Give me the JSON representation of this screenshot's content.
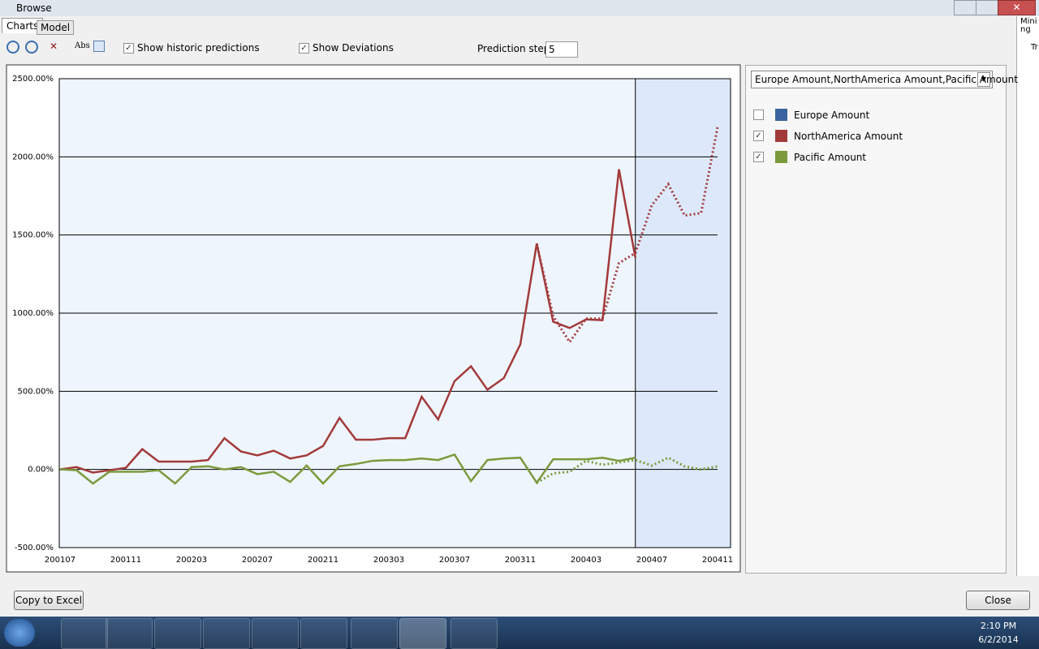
{
  "window": {
    "title": "Browse"
  },
  "tabs": [
    "Charts",
    "Model"
  ],
  "toolbar": {
    "abs_label": "Abs",
    "options": [
      {
        "label": "Show historic predictions",
        "checked": true
      },
      {
        "label": "Show Deviations",
        "checked": true
      }
    ],
    "prediction_steps_label": "Prediction steps",
    "prediction_steps": 5
  },
  "chart_data": {
    "type": "line",
    "categories": [
      "200107",
      null,
      null,
      null,
      "200111",
      null,
      null,
      null,
      "200203",
      null,
      null,
      null,
      "200207",
      null,
      null,
      null,
      "200211",
      null,
      null,
      null,
      "200303",
      null,
      null,
      null,
      "200307",
      null,
      null,
      null,
      "200311",
      null,
      null,
      null,
      "200403",
      null,
      null,
      null,
      "200407",
      null,
      null,
      null,
      "200411"
    ],
    "ylim": [
      -500,
      2500
    ],
    "yticks": [
      {
        "value": -500,
        "label": "-500.00%"
      },
      {
        "value": 0,
        "label": "0.00%"
      },
      {
        "value": 500,
        "label": "500.00%"
      },
      {
        "value": 1000,
        "label": "1000.00%"
      },
      {
        "value": 1500,
        "label": "1500.00%"
      },
      {
        "value": 2000,
        "label": "2000.00%"
      },
      {
        "value": 2500,
        "label": "2500.00%"
      }
    ],
    "grid": true,
    "series": [
      {
        "name": "Europe Amount",
        "color": "#3a64a0",
        "checked": false,
        "values": [
          null,
          null,
          null,
          null,
          null,
          null,
          null,
          null,
          null,
          null,
          null,
          null,
          null,
          null,
          null,
          null,
          null,
          null,
          null,
          null,
          null,
          null,
          null,
          null,
          null,
          null,
          null,
          null,
          null,
          null,
          null,
          null,
          null,
          null,
          null,
          null,
          null,
          null,
          null,
          null,
          null
        ],
        "predicted": [
          null,
          null,
          null,
          null,
          null,
          null,
          null,
          null,
          null,
          null,
          null,
          null,
          null,
          null,
          null,
          null,
          null,
          null,
          null,
          null,
          null,
          null,
          null,
          null,
          null,
          null,
          null,
          null,
          null,
          null,
          null,
          null,
          null,
          null,
          null,
          null,
          null,
          null,
          null,
          null,
          null
        ]
      },
      {
        "name": "NorthAmerica Amount",
        "color": "#a33a3a",
        "checked": true,
        "values": [
          0,
          15,
          -20,
          -5,
          10,
          130,
          50,
          50,
          50,
          60,
          200,
          115,
          90,
          120,
          70,
          90,
          150,
          330,
          190,
          190,
          200,
          200,
          465,
          320,
          565,
          660,
          510,
          585,
          800,
          1445,
          945,
          905,
          960,
          955,
          1920,
          1355,
          null,
          null,
          null,
          null,
          null
        ],
        "predicted": [
          null,
          null,
          null,
          null,
          null,
          null,
          null,
          null,
          null,
          null,
          null,
          null,
          null,
          null,
          null,
          null,
          null,
          null,
          null,
          null,
          null,
          null,
          null,
          null,
          null,
          null,
          null,
          null,
          null,
          1445,
          980,
          815,
          965,
          965,
          1320,
          1385,
          1690,
          1825,
          1625,
          1640,
          2190
        ]
      },
      {
        "name": "Pacific Amount",
        "color": "#7b9a3c",
        "checked": true,
        "values": [
          0,
          -5,
          -90,
          -15,
          -15,
          -15,
          -5,
          -90,
          15,
          20,
          0,
          15,
          -30,
          -15,
          -80,
          25,
          -90,
          20,
          35,
          55,
          60,
          60,
          70,
          60,
          95,
          -75,
          60,
          70,
          75,
          -85,
          65,
          65,
          65,
          75,
          55,
          75,
          null,
          null,
          null,
          null,
          null
        ],
        "predicted": [
          null,
          null,
          null,
          null,
          null,
          null,
          null,
          null,
          null,
          null,
          null,
          null,
          null,
          null,
          null,
          null,
          null,
          null,
          null,
          null,
          null,
          null,
          null,
          null,
          null,
          null,
          null,
          null,
          null,
          -85,
          -25,
          -15,
          55,
          30,
          45,
          60,
          25,
          75,
          20,
          0,
          20
        ]
      }
    ]
  },
  "series_selector": "Europe Amount,NorthAmerica Amount,Pacific Amount",
  "buttons": [
    "Copy to Excel",
    "Close"
  ],
  "side_labels": [
    "Mini",
    "ng",
    "Tr"
  ],
  "taskbar": {
    "time": "2:10 PM",
    "date": "6/2/2014"
  }
}
